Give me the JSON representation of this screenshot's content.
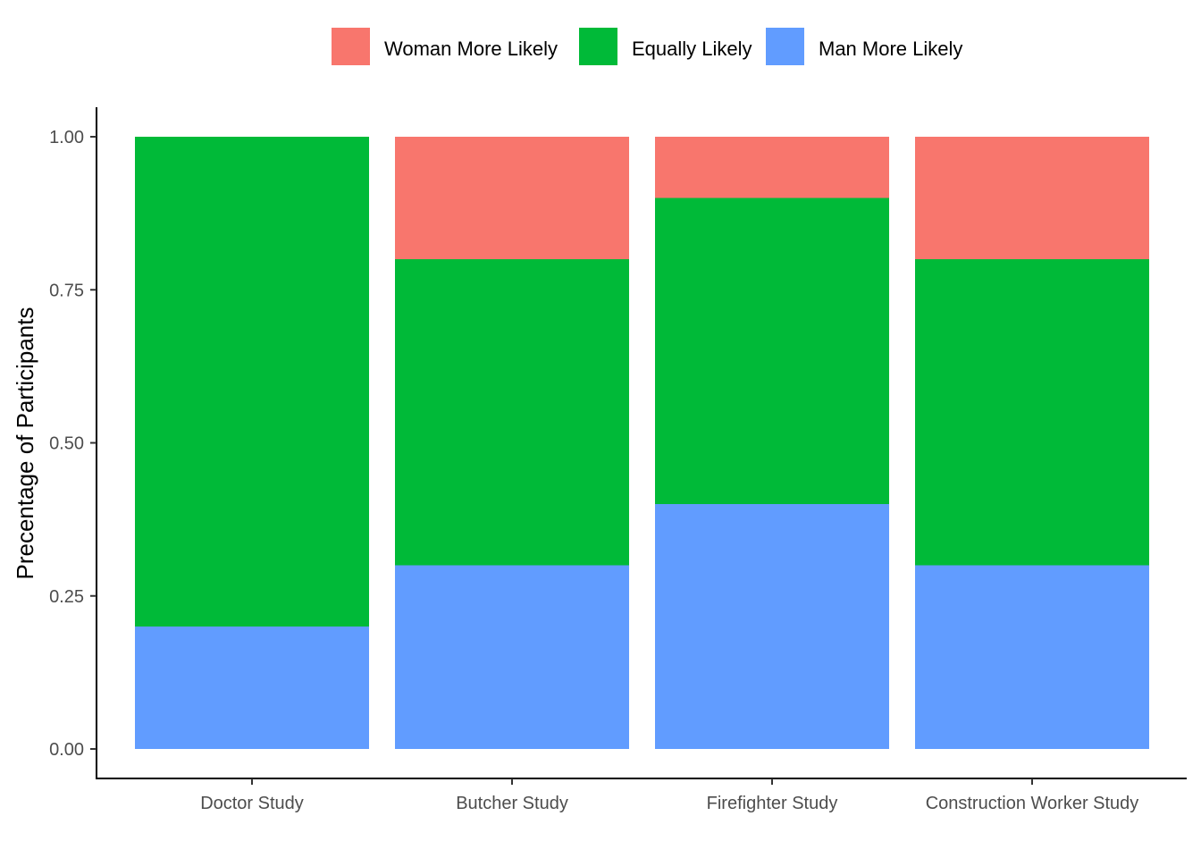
{
  "chart_data": {
    "type": "bar",
    "stacked": true,
    "title": "",
    "xlabel": "",
    "ylabel": "Precentage of Participants",
    "ylim": [
      0,
      1
    ],
    "yticks": [
      "0.00",
      "0.25",
      "0.50",
      "0.75",
      "1.00"
    ],
    "categories": [
      "Doctor Study",
      "Butcher Study",
      "Firefighter Study",
      "Construction Worker Study"
    ],
    "series": [
      {
        "name": "Man More Likely",
        "color": "#619CFF",
        "values": [
          0.2,
          0.3,
          0.4,
          0.3
        ]
      },
      {
        "name": "Equally Likely",
        "color": "#00BA38",
        "values": [
          0.8,
          0.5,
          0.5,
          0.5
        ]
      },
      {
        "name": "Woman More Likely",
        "color": "#F8766D",
        "values": [
          0.0,
          0.2,
          0.1,
          0.2
        ]
      }
    ],
    "legend": {
      "placement": "top",
      "order": [
        "Woman More Likely",
        "Equally Likely",
        "Man More Likely"
      ]
    },
    "grid": false
  }
}
